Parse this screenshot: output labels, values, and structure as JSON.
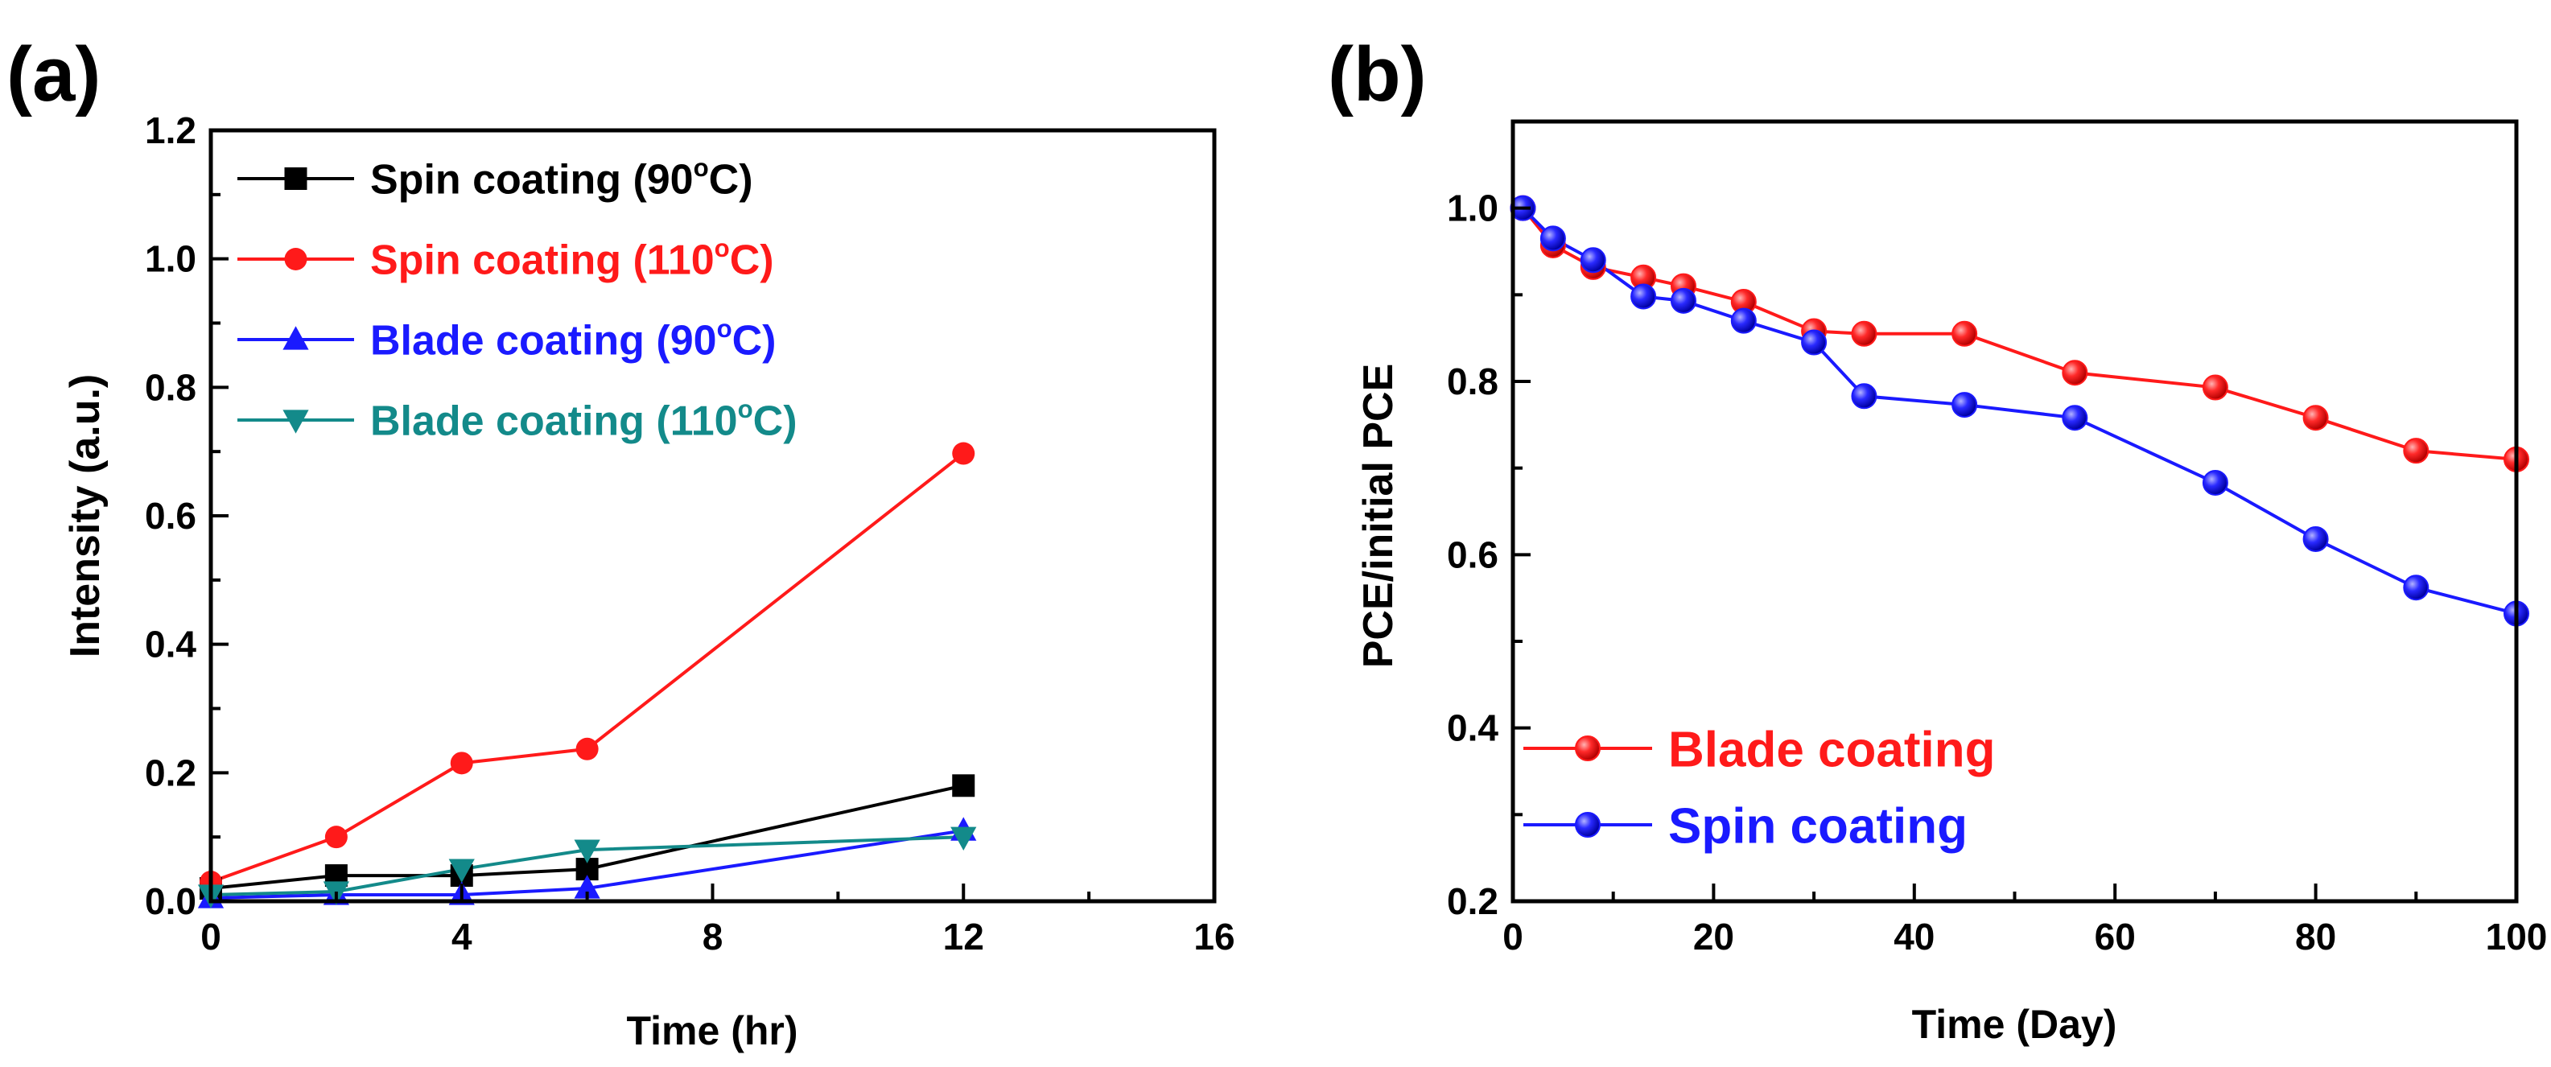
{
  "chart_data": [
    {
      "panel_label": "(a)",
      "type": "line",
      "xlabel": "Time (hr)",
      "ylabel": "Intensity (a.u.)",
      "xlim": [
        0,
        16
      ],
      "ylim": [
        0,
        1.2
      ],
      "xticks": [
        0,
        4,
        8,
        12,
        16
      ],
      "yticks": [
        0.0,
        0.2,
        0.4,
        0.6,
        0.8,
        1.0,
        1.2
      ],
      "xtick_labels": [
        "0",
        "4",
        "8",
        "12",
        "16"
      ],
      "ytick_labels": [
        "0.0",
        "0.2",
        "0.4",
        "0.6",
        "0.8",
        "1.0",
        "1.2"
      ],
      "legend_position": "top-left",
      "series": [
        {
          "name": "Spin coating (90",
          "name_suffix": "C)",
          "color": "#000000",
          "marker": "square",
          "x": [
            0,
            2,
            4,
            6,
            12
          ],
          "y": [
            0.02,
            0.04,
            0.04,
            0.05,
            0.18
          ]
        },
        {
          "name": "Spin coating (110",
          "name_suffix": "C)",
          "color": "#ff1a1a",
          "marker": "circle",
          "x": [
            0,
            2,
            4,
            6,
            12
          ],
          "y": [
            0.03,
            0.1,
            0.215,
            0.237,
            0.697
          ]
        },
        {
          "name": "Blade coating (90",
          "name_suffix": "C)",
          "color": "#1a1aff",
          "marker": "triangle-up",
          "x": [
            0,
            2,
            4,
            6,
            12
          ],
          "y": [
            0.005,
            0.01,
            0.01,
            0.02,
            0.11
          ]
        },
        {
          "name": "Blade coating (110",
          "name_suffix": "C)",
          "color": "#138a8a",
          "marker": "triangle-down",
          "x": [
            0,
            2,
            4,
            6,
            12
          ],
          "y": [
            0.01,
            0.015,
            0.05,
            0.08,
            0.1
          ]
        }
      ]
    },
    {
      "panel_label": "(b)",
      "type": "line",
      "xlabel": "Time (Day)",
      "ylabel": "PCE/initial PCE",
      "xlim": [
        0,
        100
      ],
      "ylim": [
        0.2,
        1.1
      ],
      "xticks": [
        0,
        20,
        40,
        60,
        80,
        100
      ],
      "yticks": [
        0.2,
        0.4,
        0.6,
        0.8,
        1.0
      ],
      "xtick_labels": [
        "0",
        "20",
        "40",
        "60",
        "80",
        "100"
      ],
      "ytick_labels": [
        "0.2",
        "0.4",
        "0.6",
        "0.8",
        "1.0"
      ],
      "legend_position": "bottom-left",
      "series": [
        {
          "name": "Blade coating",
          "color": "#ff1a1a",
          "marker": "sphere",
          "x": [
            1,
            4,
            8,
            13,
            17,
            23,
            30,
            35,
            45,
            56,
            70,
            80,
            90,
            100
          ],
          "y": [
            1.0,
            0.957,
            0.932,
            0.92,
            0.91,
            0.892,
            0.858,
            0.855,
            0.855,
            0.81,
            0.793,
            0.758,
            0.72,
            0.71
          ]
        },
        {
          "name": "Spin coating",
          "color": "#1a1aff",
          "marker": "sphere",
          "x": [
            1,
            4,
            8,
            13,
            17,
            23,
            30,
            35,
            45,
            56,
            70,
            80,
            90,
            100
          ],
          "y": [
            1.0,
            0.965,
            0.94,
            0.898,
            0.893,
            0.87,
            0.845,
            0.783,
            0.773,
            0.758,
            0.683,
            0.618,
            0.562,
            0.532
          ]
        }
      ]
    }
  ]
}
